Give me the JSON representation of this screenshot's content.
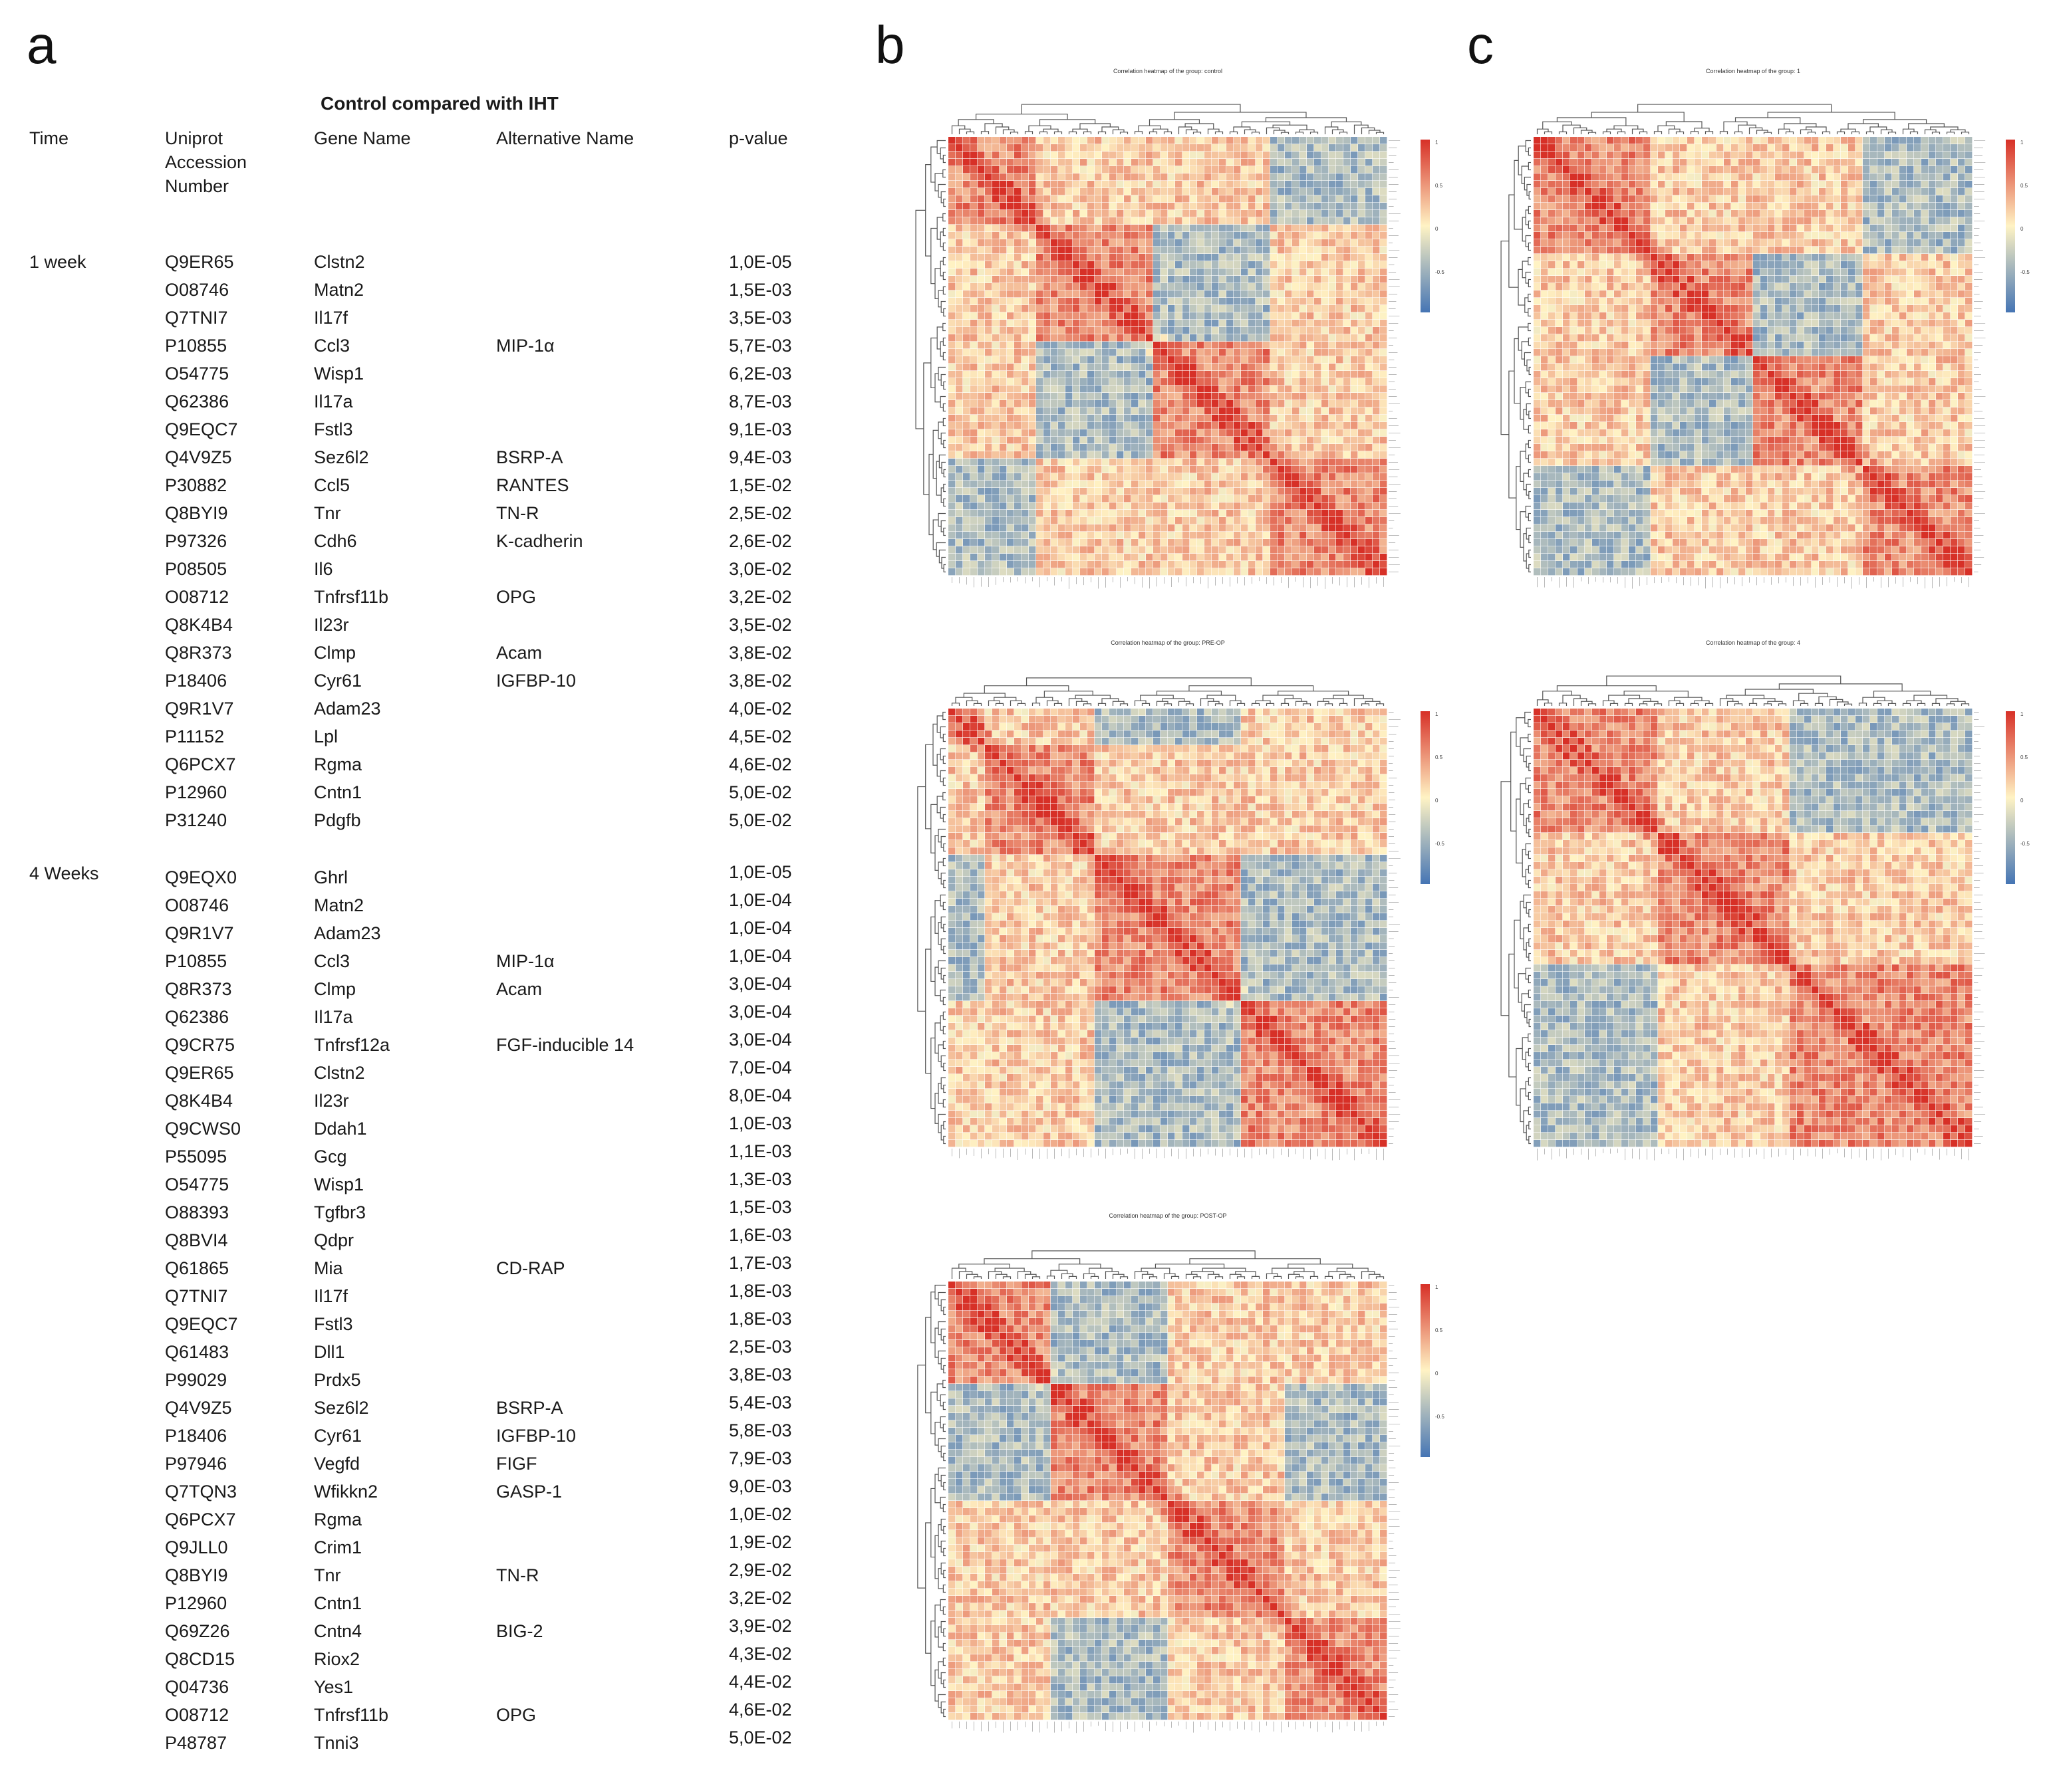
{
  "panels": {
    "a": "a",
    "b": "b",
    "c": "c"
  },
  "table": {
    "title": "Control compared with IHT",
    "headers": {
      "time": "Time",
      "accession": [
        "Uniprot",
        "Accession",
        "Number"
      ],
      "gene": "Gene Name",
      "alt": "Alternative Name",
      "pvalue": "p-value"
    },
    "groups": [
      {
        "time": "1 week",
        "rows": [
          {
            "acc": "Q9ER65",
            "gene": "Clstn2",
            "alt": ""
          },
          {
            "acc": "O08746",
            "gene": "Matn2",
            "alt": ""
          },
          {
            "acc": "Q7TNI7",
            "gene": "Il17f",
            "alt": ""
          },
          {
            "acc": "P10855",
            "gene": "Ccl3",
            "alt": "MIP-1α"
          },
          {
            "acc": "O54775",
            "gene": "Wisp1",
            "alt": ""
          },
          {
            "acc": "Q62386",
            "gene": "Il17a",
            "alt": ""
          },
          {
            "acc": "Q9EQC7",
            "gene": "Fstl3",
            "alt": ""
          },
          {
            "acc": "Q4V9Z5",
            "gene": "Sez6l2",
            "alt": "BSRP-A"
          },
          {
            "acc": "P30882",
            "gene": "Ccl5",
            "alt": "RANTES"
          },
          {
            "acc": "Q8BYI9",
            "gene": "Tnr",
            "alt": "TN-R"
          },
          {
            "acc": "P97326",
            "gene": "Cdh6",
            "alt": "K-cadherin"
          },
          {
            "acc": "P08505",
            "gene": "Il6",
            "alt": ""
          },
          {
            "acc": "O08712",
            "gene": "Tnfrsf11b",
            "alt": "OPG"
          },
          {
            "acc": "Q8K4B4",
            "gene": "Il23r",
            "alt": ""
          },
          {
            "acc": "Q8R373",
            "gene": "Clmp",
            "alt": "Acam"
          },
          {
            "acc": "P18406",
            "gene": "Cyr61",
            "alt": "IGFBP-10"
          },
          {
            "acc": "Q9R1V7",
            "gene": "Adam23",
            "alt": ""
          },
          {
            "acc": "P11152",
            "gene": "Lpl",
            "alt": ""
          },
          {
            "acc": "Q6PCX7",
            "gene": "Rgma",
            "alt": ""
          },
          {
            "acc": "P12960",
            "gene": "Cntn1",
            "alt": ""
          },
          {
            "acc": "P31240",
            "gene": "Pdgfb",
            "alt": ""
          }
        ],
        "pvalues": [
          "1,0E-05",
          "1,5E-03",
          "3,5E-03",
          "5,7E-03",
          "6,2E-03",
          "8,7E-03",
          "9,1E-03",
          "9,4E-03",
          "1,5E-02",
          "2,5E-02",
          "2,6E-02",
          "3,0E-02",
          "3,2E-02",
          "3,5E-02",
          "3,8E-02",
          "3,8E-02",
          "4,0E-02",
          "4,5E-02",
          "4,6E-02",
          "5,0E-02",
          "5,0E-02"
        ]
      },
      {
        "time": "4 Weeks",
        "rows": [
          {
            "acc": "Q9EQX0",
            "gene": "Ghrl",
            "alt": ""
          },
          {
            "acc": "O08746",
            "gene": "Matn2",
            "alt": ""
          },
          {
            "acc": "Q9R1V7",
            "gene": "Adam23",
            "alt": ""
          },
          {
            "acc": "P10855",
            "gene": "Ccl3",
            "alt": "MIP-1α"
          },
          {
            "acc": "Q8R373",
            "gene": "Clmp",
            "alt": "Acam"
          },
          {
            "acc": "Q62386",
            "gene": "Il17a",
            "alt": ""
          },
          {
            "acc": "Q9CR75",
            "gene": "Tnfrsf12a",
            "alt": "FGF-inducible 14"
          },
          {
            "acc": "Q9ER65",
            "gene": "Clstn2",
            "alt": ""
          },
          {
            "acc": "Q8K4B4",
            "gene": "Il23r",
            "alt": ""
          },
          {
            "acc": "Q9CWS0",
            "gene": "Ddah1",
            "alt": ""
          },
          {
            "acc": "P55095",
            "gene": "Gcg",
            "alt": ""
          },
          {
            "acc": "O54775",
            "gene": "Wisp1",
            "alt": ""
          },
          {
            "acc": "O88393",
            "gene": "Tgfbr3",
            "alt": ""
          },
          {
            "acc": "Q8BVI4",
            "gene": "Qdpr",
            "alt": ""
          },
          {
            "acc": "Q61865",
            "gene": "Mia",
            "alt": "CD-RAP"
          },
          {
            "acc": "Q7TNI7",
            "gene": "Il17f",
            "alt": ""
          },
          {
            "acc": "Q9EQC7",
            "gene": "Fstl3",
            "alt": ""
          },
          {
            "acc": "Q61483",
            "gene": "Dll1",
            "alt": ""
          },
          {
            "acc": "P99029",
            "gene": "Prdx5",
            "alt": ""
          },
          {
            "acc": "Q4V9Z5",
            "gene": "Sez6l2",
            "alt": "BSRP-A"
          },
          {
            "acc": "P18406",
            "gene": "Cyr61",
            "alt": "IGFBP-10"
          },
          {
            "acc": "P97946",
            "gene": "Vegfd",
            "alt": "FIGF"
          },
          {
            "acc": "Q7TQN3",
            "gene": "Wfikkn2",
            "alt": "GASP-1"
          },
          {
            "acc": "Q6PCX7",
            "gene": "Rgma",
            "alt": ""
          },
          {
            "acc": "Q9JLL0",
            "gene": "Crim1",
            "alt": ""
          },
          {
            "acc": "Q8BYI9",
            "gene": "Tnr",
            "alt": "TN-R"
          },
          {
            "acc": "P12960",
            "gene": "Cntn1",
            "alt": ""
          },
          {
            "acc": "Q69Z26",
            "gene": "Cntn4",
            "alt": "BIG-2"
          },
          {
            "acc": "Q8CD15",
            "gene": "Riox2",
            "alt": ""
          },
          {
            "acc": "Q04736",
            "gene": "Yes1",
            "alt": ""
          },
          {
            "acc": "O08712",
            "gene": "Tnfrsf11b",
            "alt": "OPG"
          },
          {
            "acc": "P48787",
            "gene": "Tnni3",
            "alt": ""
          }
        ],
        "pvalues": [
          "1,0E-05",
          "1,0E-04",
          "1,0E-04",
          "1,0E-04",
          "3,0E-04",
          "3,0E-04",
          "3,0E-04",
          "7,0E-04",
          "8,0E-04",
          "1,0E-03",
          "1,1E-03",
          "1,3E-03",
          "1,5E-03",
          "1,6E-03",
          "1,7E-03",
          "1,8E-03",
          "1,8E-03",
          "2,5E-03",
          "3,8E-03",
          "5,4E-03",
          "5,8E-03",
          "7,9E-03",
          "9,0E-03",
          "1,0E-02",
          "1,9E-02",
          "2,9E-02",
          "3,2E-02",
          "3,9E-02",
          "4,3E-02",
          "4,4E-02",
          "4,6E-02",
          "5,0E-02"
        ]
      }
    ]
  },
  "heatmaps": [
    {
      "id": "b1",
      "title": "Correlation heatmap of the group: control",
      "n": 60,
      "seed": 11,
      "blocks": [
        0,
        12,
        28,
        44,
        60
      ],
      "colorbar_ticks": [
        "1",
        "0.5",
        "0",
        "-0.5"
      ]
    },
    {
      "id": "b2",
      "title": "Correlation heatmap of the group: PRE-OP",
      "n": 60,
      "seed": 23,
      "blocks": [
        0,
        5,
        20,
        40,
        60
      ],
      "colorbar_ticks": [
        "1",
        "0.5",
        "0",
        "-0.5"
      ]
    },
    {
      "id": "b3",
      "title": "Correlation heatmap of the group: POST-OP",
      "n": 60,
      "seed": 37,
      "blocks": [
        0,
        14,
        30,
        46,
        60
      ],
      "colorbar_ticks": [
        "1",
        "0.5",
        "0",
        "-0.5"
      ]
    },
    {
      "id": "c1",
      "title": "Correlation heatmap of the group: 1",
      "n": 60,
      "seed": 41,
      "blocks": [
        0,
        16,
        30,
        45,
        60
      ],
      "colorbar_ticks": [
        "1",
        "0.5",
        "0",
        "-0.5"
      ]
    },
    {
      "id": "c2",
      "title": "Correlation heatmap of the group: 4",
      "n": 60,
      "seed": 53,
      "blocks": [
        0,
        17,
        35,
        60
      ],
      "colorbar_ticks": [
        "1",
        "0.5",
        "0",
        "-0.5"
      ]
    }
  ],
  "colors": {
    "high": "#d73027",
    "mid": "#fff3c4",
    "low": "#4575b4"
  }
}
